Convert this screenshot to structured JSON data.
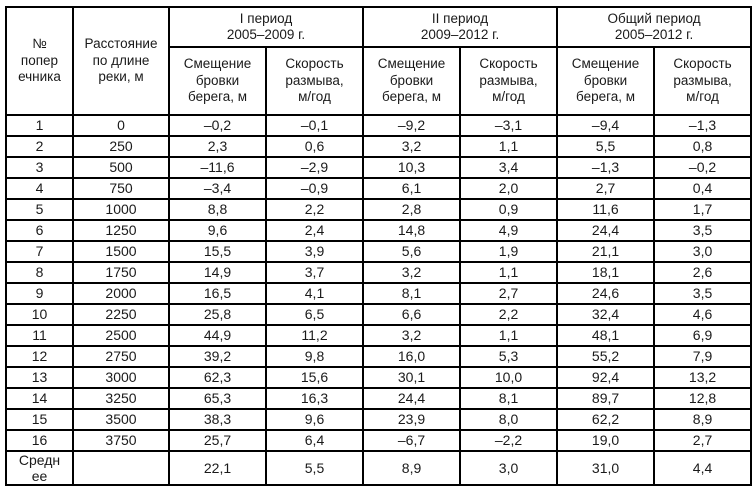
{
  "colors": {
    "background": "#ffffff",
    "border": "#000000",
    "text": "#1a1a1a"
  },
  "table": {
    "header": {
      "col_number": "№\nпопер\nечника",
      "col_distance": "Расстояние\nпо длине\nреки, м",
      "periods": [
        {
          "title": "I период\n2005–2009 г."
        },
        {
          "title": "II период\n2009–2012 г."
        },
        {
          "title": "Общий период\n2005–2012 г."
        }
      ],
      "subcols": {
        "offset": "Смещение\nбровки\nберега, м",
        "rate": "Скорость\nразмыва,\nм/год"
      }
    },
    "rows": [
      {
        "num": "1",
        "dist": "0",
        "values": [
          "–0,2",
          "–0,1",
          "–9,2",
          "–3,1",
          "–9,4",
          "–1,3"
        ]
      },
      {
        "num": "2",
        "dist": "250",
        "values": [
          "2,3",
          "0,6",
          "3,2",
          "1,1",
          "5,5",
          "0,8"
        ]
      },
      {
        "num": "3",
        "dist": "500",
        "values": [
          "–11,6",
          "–2,9",
          "10,3",
          "3,4",
          "–1,3",
          "–0,2"
        ]
      },
      {
        "num": "4",
        "dist": "750",
        "values": [
          "–3,4",
          "–0,9",
          "6,1",
          "2,0",
          "2,7",
          "0,4"
        ]
      },
      {
        "num": "5",
        "dist": "1000",
        "values": [
          "8,8",
          "2,2",
          "2,8",
          "0,9",
          "11,6",
          "1,7"
        ]
      },
      {
        "num": "6",
        "dist": "1250",
        "values": [
          "9,6",
          "2,4",
          "14,8",
          "4,9",
          "24,4",
          "3,5"
        ]
      },
      {
        "num": "7",
        "dist": "1500",
        "values": [
          "15,5",
          "3,9",
          "5,6",
          "1,9",
          "21,1",
          "3,0"
        ]
      },
      {
        "num": "8",
        "dist": "1750",
        "values": [
          "14,9",
          "3,7",
          "3,2",
          "1,1",
          "18,1",
          "2,6"
        ]
      },
      {
        "num": "9",
        "dist": "2000",
        "values": [
          "16,5",
          "4,1",
          "8,1",
          "2,7",
          "24,6",
          "3,5"
        ]
      },
      {
        "num": "10",
        "dist": "2250",
        "values": [
          "25,8",
          "6,5",
          "6,6",
          "2,2",
          "32,4",
          "4,6"
        ]
      },
      {
        "num": "11",
        "dist": "2500",
        "values": [
          "44,9",
          "11,2",
          "3,2",
          "1,1",
          "48,1",
          "6,9"
        ]
      },
      {
        "num": "12",
        "dist": "2750",
        "values": [
          "39,2",
          "9,8",
          "16,0",
          "5,3",
          "55,2",
          "7,9"
        ]
      },
      {
        "num": "13",
        "dist": "3000",
        "values": [
          "62,3",
          "15,6",
          "30,1",
          "10,0",
          "92,4",
          "13,2"
        ]
      },
      {
        "num": "14",
        "dist": "3250",
        "values": [
          "65,3",
          "16,3",
          "24,4",
          "8,1",
          "89,7",
          "12,8"
        ]
      },
      {
        "num": "15",
        "dist": "3500",
        "values": [
          "38,3",
          "9,6",
          "23,9",
          "8,0",
          "62,2",
          "8,9"
        ]
      },
      {
        "num": "16",
        "dist": "3750",
        "values": [
          "25,7",
          "6,4",
          "–6,7",
          "–2,2",
          "19,0",
          "2,7"
        ]
      }
    ],
    "summary": {
      "label": "Средн\nее",
      "dist": "",
      "values": [
        "22,1",
        "5,5",
        "8,9",
        "3,0",
        "31,0",
        "4,4"
      ]
    }
  }
}
